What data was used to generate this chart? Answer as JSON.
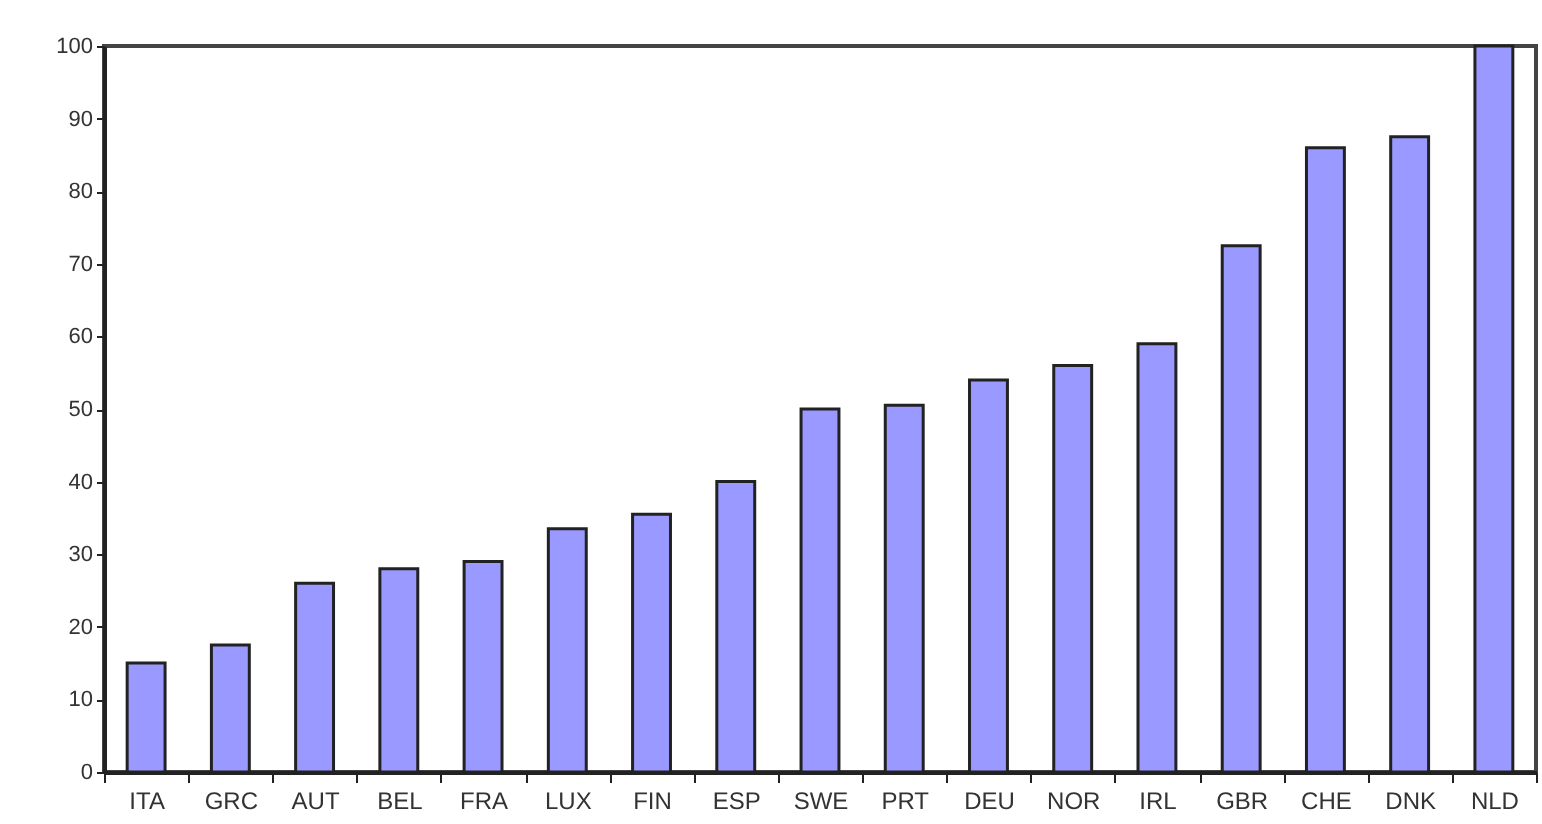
{
  "chart_data": {
    "type": "bar",
    "categories": [
      "ITA",
      "GRC",
      "AUT",
      "BEL",
      "FRA",
      "LUX",
      "FIN",
      "ESP",
      "SWE",
      "PRT",
      "DEU",
      "NOR",
      "IRL",
      "GBR",
      "CHE",
      "DNK",
      "NLD"
    ],
    "values": [
      15,
      17.5,
      26,
      28,
      29,
      33.5,
      35.5,
      40,
      50,
      50.5,
      54,
      56,
      59,
      72.5,
      86,
      87.5,
      100
    ],
    "color": "#9999ff",
    "ylim": [
      0,
      100
    ],
    "yticks": [
      0,
      10,
      20,
      30,
      40,
      50,
      60,
      70,
      80,
      90,
      100
    ],
    "grid": false
  }
}
